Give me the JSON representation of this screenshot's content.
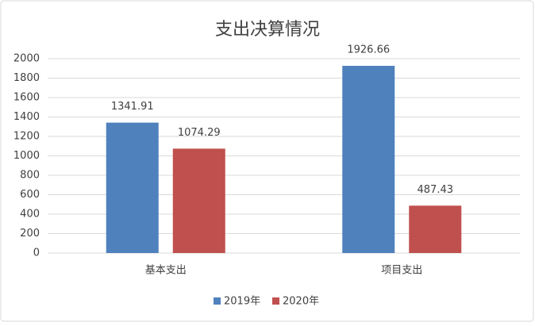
{
  "chart_data": {
    "type": "bar",
    "title": "支出决算情况",
    "categories": [
      "基本支出",
      "项目支出"
    ],
    "series": [
      {
        "name": "2019年",
        "color": "#4f81bd",
        "values": [
          1341.91,
          1926.66
        ]
      },
      {
        "name": "2020年",
        "color": "#c0504d",
        "values": [
          1074.29,
          487.43
        ]
      }
    ],
    "ylim": [
      0,
      2000
    ],
    "yticks": [
      0,
      200,
      400,
      600,
      800,
      1000,
      1200,
      1400,
      1600,
      1800,
      2000
    ],
    "grid": true,
    "legend": "bottom"
  }
}
